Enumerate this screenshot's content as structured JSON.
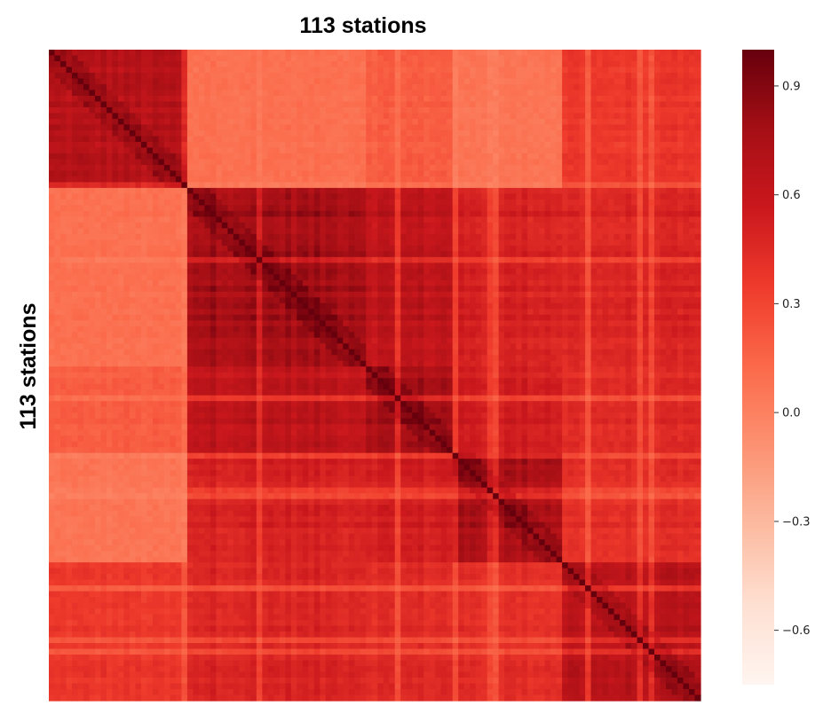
{
  "chart_data": {
    "type": "heatmap",
    "title": "113 stations",
    "xlabel": "",
    "ylabel": "113 stations",
    "n": 113,
    "colormap": "Reds",
    "vmin": -0.75,
    "vmax": 1.0,
    "colorbar": {
      "ticks": [
        0.9,
        0.6,
        0.3,
        0.0,
        -0.3,
        -0.6
      ],
      "tick_labels": [
        "0.9",
        "0.6",
        "0.3",
        "0.0",
        "−0.3",
        "−0.6"
      ]
    },
    "blocks": [
      {
        "start": 0,
        "end": 24,
        "within": 0.62
      },
      {
        "start": 24,
        "end": 55,
        "within": 0.72
      },
      {
        "start": 55,
        "end": 70,
        "within": 0.7
      },
      {
        "start": 70,
        "end": 89,
        "within": 0.68
      },
      {
        "start": 89,
        "end": 113,
        "within": 0.6
      }
    ],
    "between": [
      [
        0.62,
        0.12,
        0.2,
        0.1,
        0.35
      ],
      [
        0.12,
        0.72,
        0.6,
        0.48,
        0.45
      ],
      [
        0.2,
        0.6,
        0.7,
        0.5,
        0.42
      ],
      [
        0.1,
        0.48,
        0.5,
        0.68,
        0.4
      ],
      [
        0.35,
        0.45,
        0.42,
        0.4,
        0.6
      ]
    ],
    "diagonal": 1.0,
    "grid": false
  }
}
